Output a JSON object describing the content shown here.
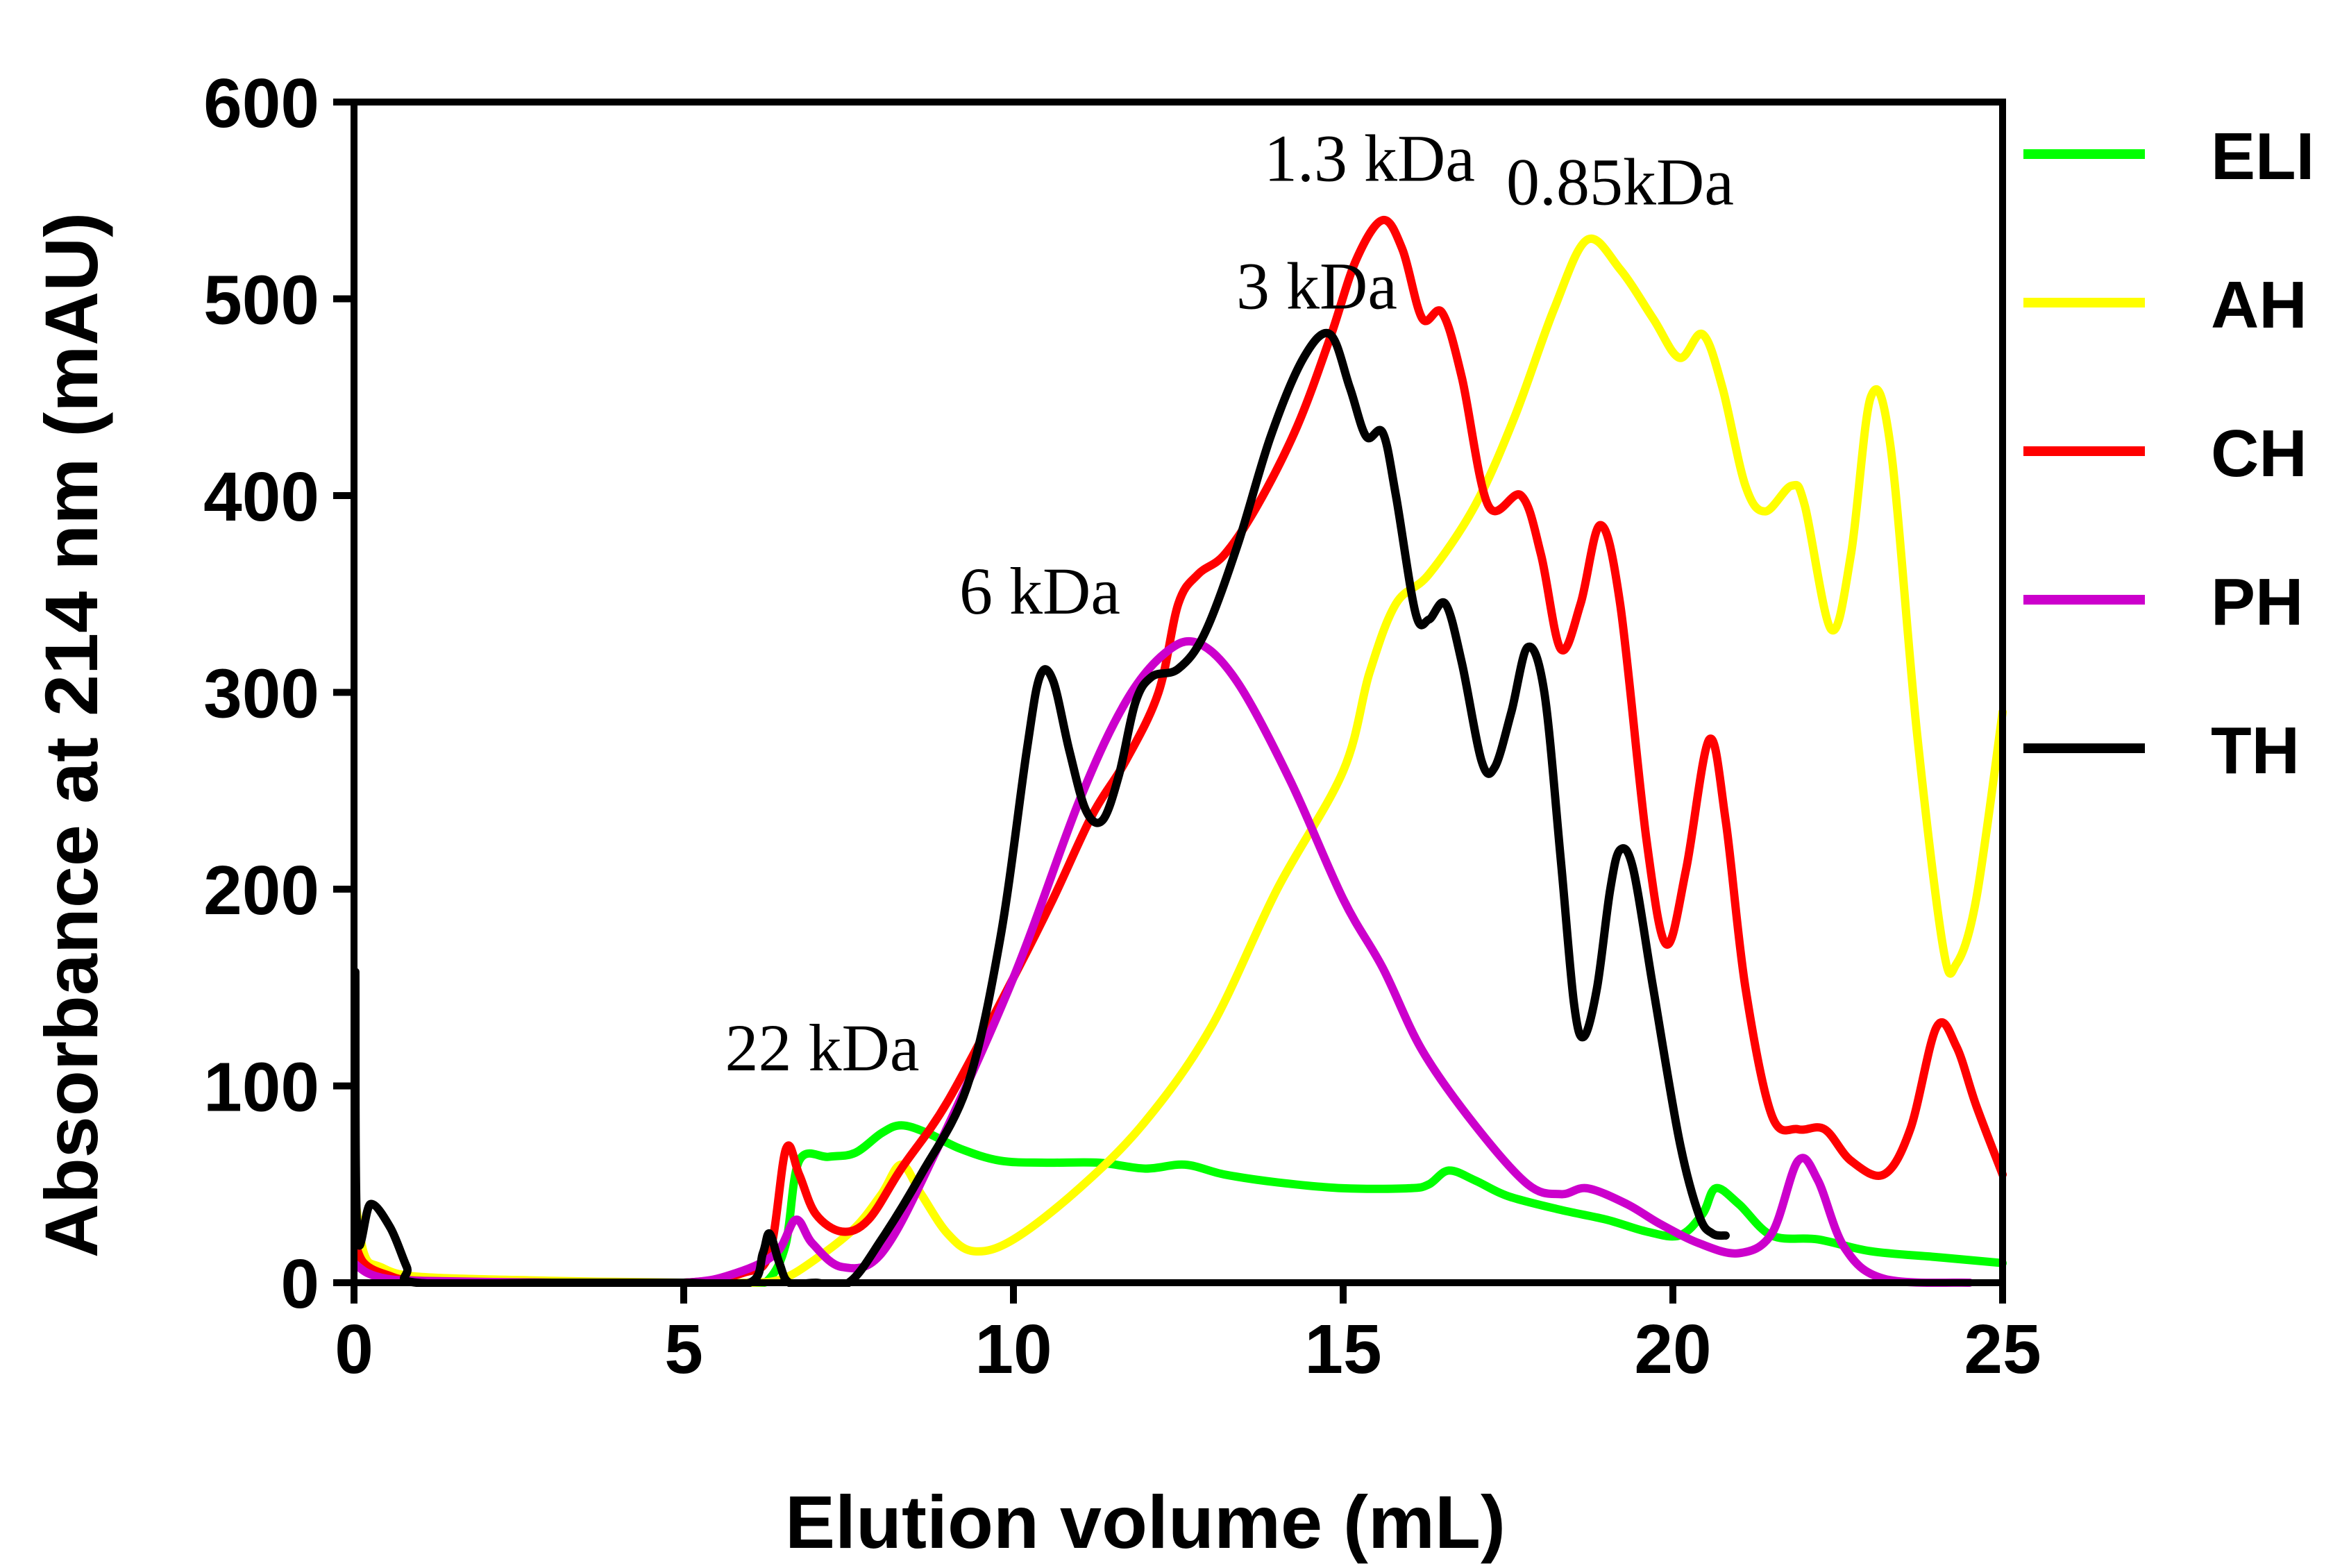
{
  "chart_data": {
    "type": "line",
    "xlabel": "Elution volume (mL)",
    "ylabel": "Absorbance at 214 nm (mAU)",
    "xlim": [
      0,
      25
    ],
    "ylim": [
      0,
      600
    ],
    "xticks": [
      0,
      5,
      10,
      15,
      20,
      25
    ],
    "yticks": [
      0,
      100,
      200,
      300,
      400,
      500,
      600
    ],
    "grid": false,
    "legend_position": "right",
    "series": [
      {
        "name": "ELI",
        "color": "#00ff00",
        "points": [
          [
            0,
            10
          ],
          [
            0.5,
            5
          ],
          [
            1,
            2
          ],
          [
            3,
            0
          ],
          [
            5,
            0
          ],
          [
            6,
            0
          ],
          [
            6.3,
            2
          ],
          [
            6.55,
            20
          ],
          [
            6.75,
            62
          ],
          [
            7.2,
            64
          ],
          [
            7.6,
            66
          ],
          [
            8,
            76
          ],
          [
            8.3,
            80
          ],
          [
            8.7,
            76
          ],
          [
            9.2,
            68
          ],
          [
            9.8,
            62
          ],
          [
            10.5,
            61
          ],
          [
            11.3,
            61
          ],
          [
            12,
            58
          ],
          [
            12.6,
            60
          ],
          [
            13.2,
            55
          ],
          [
            14,
            51
          ],
          [
            15,
            48
          ],
          [
            16,
            48
          ],
          [
            16.3,
            50
          ],
          [
            16.6,
            57
          ],
          [
            17,
            52
          ],
          [
            17.5,
            44
          ],
          [
            18.3,
            37
          ],
          [
            19,
            32
          ],
          [
            19.6,
            26
          ],
          [
            20.1,
            24
          ],
          [
            20.45,
            35
          ],
          [
            20.65,
            48
          ],
          [
            21,
            40
          ],
          [
            21.5,
            24
          ],
          [
            22.2,
            22
          ],
          [
            23,
            16
          ],
          [
            24,
            13
          ],
          [
            25,
            10
          ]
        ]
      },
      {
        "name": "AH",
        "color": "#ffff00",
        "points": [
          [
            0,
            48
          ],
          [
            0.15,
            15
          ],
          [
            0.4,
            8
          ],
          [
            1,
            3
          ],
          [
            3,
            1
          ],
          [
            5,
            0
          ],
          [
            6,
            0
          ],
          [
            6.5,
            2
          ],
          [
            7,
            12
          ],
          [
            7.6,
            28
          ],
          [
            8,
            45
          ],
          [
            8.3,
            60
          ],
          [
            8.6,
            45
          ],
          [
            9,
            25
          ],
          [
            9.4,
            16
          ],
          [
            10,
            22
          ],
          [
            11,
            48
          ],
          [
            12,
            82
          ],
          [
            13,
            130
          ],
          [
            14,
            200
          ],
          [
            15,
            260
          ],
          [
            15.4,
            310
          ],
          [
            15.8,
            345
          ],
          [
            16.3,
            360
          ],
          [
            17,
            395
          ],
          [
            17.6,
            440
          ],
          [
            18.2,
            495
          ],
          [
            18.7,
            530
          ],
          [
            19.2,
            515
          ],
          [
            19.7,
            490
          ],
          [
            20.1,
            470
          ],
          [
            20.45,
            482
          ],
          [
            20.75,
            455
          ],
          [
            21.1,
            405
          ],
          [
            21.4,
            392
          ],
          [
            21.8,
            405
          ],
          [
            22,
            395
          ],
          [
            22.4,
            332
          ],
          [
            22.7,
            370
          ],
          [
            23,
            450
          ],
          [
            23.3,
            425
          ],
          [
            23.7,
            280
          ],
          [
            24.1,
            170
          ],
          [
            24.3,
            162
          ],
          [
            24.6,
            195
          ],
          [
            25,
            290
          ]
        ]
      },
      {
        "name": "CH",
        "color": "#ff0000",
        "points": [
          [
            0,
            22
          ],
          [
            0.15,
            10
          ],
          [
            0.5,
            4
          ],
          [
            1,
            1
          ],
          [
            3,
            0
          ],
          [
            5,
            0
          ],
          [
            5.9,
            5
          ],
          [
            6.3,
            15
          ],
          [
            6.55,
            68
          ],
          [
            6.75,
            55
          ],
          [
            7,
            35
          ],
          [
            7.4,
            26
          ],
          [
            7.8,
            32
          ],
          [
            8.3,
            58
          ],
          [
            9,
            92
          ],
          [
            10,
            155
          ],
          [
            10.6,
            195
          ],
          [
            11.2,
            238
          ],
          [
            11.7,
            265
          ],
          [
            12.2,
            300
          ],
          [
            12.5,
            345
          ],
          [
            12.8,
            360
          ],
          [
            13.2,
            370
          ],
          [
            13.7,
            395
          ],
          [
            14.3,
            435
          ],
          [
            14.8,
            480
          ],
          [
            15.2,
            520
          ],
          [
            15.6,
            540
          ],
          [
            15.9,
            525
          ],
          [
            16.2,
            490
          ],
          [
            16.5,
            493
          ],
          [
            16.8,
            460
          ],
          [
            17.2,
            395
          ],
          [
            17.7,
            400
          ],
          [
            18,
            370
          ],
          [
            18.3,
            322
          ],
          [
            18.6,
            345
          ],
          [
            18.9,
            385
          ],
          [
            19.2,
            345
          ],
          [
            19.6,
            225
          ],
          [
            19.9,
            172
          ],
          [
            20.2,
            210
          ],
          [
            20.55,
            276
          ],
          [
            20.8,
            235
          ],
          [
            21.1,
            150
          ],
          [
            21.5,
            85
          ],
          [
            21.9,
            78
          ],
          [
            22.3,
            78
          ],
          [
            22.7,
            62
          ],
          [
            23.2,
            55
          ],
          [
            23.6,
            78
          ],
          [
            24,
            130
          ],
          [
            24.3,
            120
          ],
          [
            24.6,
            90
          ],
          [
            25,
            55
          ]
        ]
      },
      {
        "name": "PH",
        "color": "#cc00cc",
        "points": [
          [
            0,
            10
          ],
          [
            0.2,
            5
          ],
          [
            0.5,
            2
          ],
          [
            1,
            1
          ],
          [
            3,
            0
          ],
          [
            5,
            0
          ],
          [
            5.8,
            5
          ],
          [
            6.4,
            15
          ],
          [
            6.7,
            32
          ],
          [
            6.95,
            20
          ],
          [
            7.4,
            8
          ],
          [
            8,
            15
          ],
          [
            8.8,
            65
          ],
          [
            10,
            155
          ],
          [
            11,
            245
          ],
          [
            11.7,
            295
          ],
          [
            12.3,
            320
          ],
          [
            12.8,
            325
          ],
          [
            13.4,
            305
          ],
          [
            14.2,
            255
          ],
          [
            15,
            195
          ],
          [
            15.6,
            160
          ],
          [
            16.2,
            118
          ],
          [
            17,
            80
          ],
          [
            17.8,
            50
          ],
          [
            18.3,
            45
          ],
          [
            18.7,
            48
          ],
          [
            19.3,
            40
          ],
          [
            19.8,
            30
          ],
          [
            20.4,
            20
          ],
          [
            21,
            15
          ],
          [
            21.5,
            25
          ],
          [
            21.9,
            62
          ],
          [
            22.2,
            52
          ],
          [
            22.6,
            18
          ],
          [
            23.2,
            2
          ],
          [
            24.5,
            0
          ]
        ]
      },
      {
        "name": "TH",
        "color": "#000000",
        "points": [
          [
            0.02,
            158
          ],
          [
            0.05,
            25
          ],
          [
            0.25,
            40
          ],
          [
            0.55,
            28
          ],
          [
            0.8,
            8
          ],
          [
            0.95,
            0
          ],
          [
            3,
            0
          ],
          [
            5,
            0
          ],
          [
            6,
            0
          ],
          [
            6.2,
            15
          ],
          [
            6.3,
            25
          ],
          [
            6.45,
            10
          ],
          [
            6.6,
            0
          ],
          [
            7,
            0
          ],
          [
            7.5,
            0
          ],
          [
            8,
            22
          ],
          [
            8.6,
            55
          ],
          [
            9.3,
            100
          ],
          [
            9.8,
            175
          ],
          [
            10.2,
            270
          ],
          [
            10.4,
            308
          ],
          [
            10.6,
            306
          ],
          [
            10.85,
            270
          ],
          [
            11.1,
            240
          ],
          [
            11.35,
            235
          ],
          [
            11.6,
            258
          ],
          [
            11.85,
            295
          ],
          [
            12.1,
            308
          ],
          [
            12.5,
            312
          ],
          [
            12.9,
            330
          ],
          [
            13.4,
            375
          ],
          [
            13.9,
            430
          ],
          [
            14.4,
            470
          ],
          [
            14.8,
            482
          ],
          [
            15.1,
            455
          ],
          [
            15.35,
            430
          ],
          [
            15.6,
            432
          ],
          [
            15.8,
            400
          ],
          [
            16.1,
            340
          ],
          [
            16.3,
            337
          ],
          [
            16.55,
            345
          ],
          [
            16.8,
            315
          ],
          [
            17.1,
            265
          ],
          [
            17.3,
            262
          ],
          [
            17.55,
            290
          ],
          [
            17.8,
            323
          ],
          [
            18.05,
            300
          ],
          [
            18.3,
            215
          ],
          [
            18.5,
            142
          ],
          [
            18.65,
            125
          ],
          [
            18.85,
            150
          ],
          [
            19.05,
            200
          ],
          [
            19.2,
            220
          ],
          [
            19.4,
            210
          ],
          [
            19.7,
            150
          ],
          [
            20.1,
            72
          ],
          [
            20.4,
            34
          ],
          [
            20.6,
            25
          ],
          [
            20.8,
            24
          ]
        ]
      }
    ],
    "annotations": [
      {
        "text": "22 kDa",
        "x": 7.1,
        "y": 108
      },
      {
        "text": "6 kDa",
        "x": 10.4,
        "y": 340
      },
      {
        "text": "3 kDa",
        "x": 14.6,
        "y": 495
      },
      {
        "text": "1.3 kDa",
        "x": 15.4,
        "y": 560
      },
      {
        "text": "0.85kDa",
        "x": 19.2,
        "y": 548
      }
    ]
  }
}
